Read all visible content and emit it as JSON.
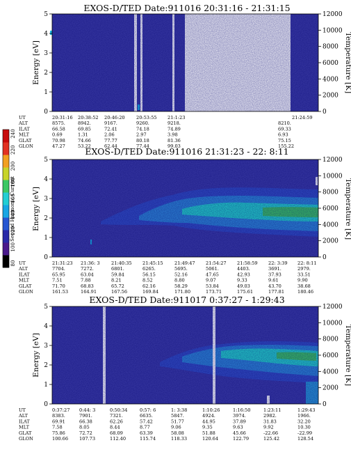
{
  "colors": {
    "background": "#3c3ca6",
    "band_cyan": "#26d6cc",
    "band_green": "#3ec862",
    "band_blue": "#2f88d8",
    "white_gap": "#ffffff"
  },
  "colorbar": {
    "title": "Second Harmonic Current",
    "ticks": [
      "80",
      "100",
      "120",
      "140",
      "160",
      "180",
      "200",
      "220",
      "240"
    ],
    "colors": [
      "#000000",
      "#4a1a8c",
      "#2a2aa8",
      "#2656d2",
      "#18a6e4",
      "#22ced4",
      "#3cc864",
      "#c8d42a",
      "#f2a020",
      "#e23222",
      "#c80c0c"
    ]
  },
  "chart_data": [
    {
      "type": "heatmap",
      "title": "EXOS-D/TED   Date:911016  20:31:16 - 21:31:15",
      "ylabel": "Energy [eV]",
      "y2label": "Temperature [K]",
      "ylim": [
        0,
        5
      ],
      "y_ticks": [
        "0",
        "1",
        "2",
        "3",
        "4",
        "5"
      ],
      "y2lim": [
        0,
        12000
      ],
      "y2_ticks": [
        "0",
        "2000",
        "4000",
        "6000",
        "8000",
        "10000",
        "12000"
      ],
      "orbit_labels": [
        "UT",
        "ALT",
        "ILAT",
        "MLT",
        "GLAT",
        "GLON"
      ],
      "orbit_columns": [
        [
          "20:31:16",
          "8575.",
          "66.58",
          "0.69",
          "70.98",
          "47.27"
        ],
        [
          "20:38:52",
          "8942.",
          "69.85",
          "1.31",
          "74.66",
          "53.22"
        ],
        [
          "20:46:20",
          "9167.",
          "72.41",
          "2.06",
          "77.77",
          "62.44"
        ],
        [
          "20:53:55",
          "9260.",
          "74.18",
          "2.97",
          "80.18",
          "77.44"
        ],
        [
          "21:1:23",
          "9218.",
          "74.89",
          "3.98",
          "81.36",
          "99.03"
        ],
        [
          "",
          "",
          "",
          "",
          "",
          ""
        ],
        [
          "",
          "8210.",
          "69.33",
          "6.93",
          "75.15",
          "155.22"
        ],
        [
          "21:24:59",
          "",
          "",
          "",
          "",
          ""
        ]
      ]
    },
    {
      "type": "heatmap",
      "title": "EXOS-D/TED   Date:911016  21:31:23 - 22: 8:11",
      "ylabel": "Energy [eV]",
      "y2label": "Temperature [K]",
      "ylim": [
        0,
        5
      ],
      "y_ticks": [
        "0",
        "1",
        "2",
        "3",
        "4",
        "5"
      ],
      "y2lim": [
        0,
        12000
      ],
      "y2_ticks": [
        "0",
        "2000",
        "4000",
        "6000",
        "8000",
        "10000",
        "12000"
      ],
      "orbit_labels": [
        "UT",
        "ALT",
        "ILAT",
        "MLT",
        "GLAT",
        "GLON"
      ],
      "orbit_columns": [
        [
          "21:31:23",
          "7704.",
          "65.95",
          "7.51",
          "71.70",
          "161.53"
        ],
        [
          "21:36: 3",
          "7272.",
          "63.04",
          "7.88",
          "68.83",
          "164.91"
        ],
        [
          "21:40:35",
          "6801.",
          "59.84",
          "8.21",
          "65.72",
          "167.56"
        ],
        [
          "21:45:15",
          "6265.",
          "56.15",
          "8.52",
          "62.16",
          "169.84"
        ],
        [
          "21:49:47",
          "5695.",
          "52.16",
          "8.80",
          "58.29",
          "171.80"
        ],
        [
          "21:54:27",
          "5061.",
          "47.65",
          "9.07",
          "53.84",
          "173.71"
        ],
        [
          "21:58:59",
          "4403.",
          "42.93",
          "9.33",
          "49.03",
          "175.61"
        ],
        [
          "22: 3:39",
          "3691.",
          "37.93",
          "9.61",
          "43.70",
          "177.81"
        ],
        [
          "22: 8:11",
          "2979.",
          "33.51",
          "9.90",
          "38.68",
          "180.46"
        ]
      ]
    },
    {
      "type": "heatmap",
      "title": "EXOS-D/TED   Date:911017  0:37:27 - 1:29:43",
      "ylabel": "Energy [eV]",
      "y2label": "Temperature [K]",
      "ylim": [
        0,
        5
      ],
      "y_ticks": [
        "0",
        "1",
        "2",
        "3",
        "4",
        "5"
      ],
      "y2lim": [
        0,
        12000
      ],
      "y2_ticks": [
        "0",
        "2000",
        "4000",
        "6000",
        "8000",
        "10000",
        "12000"
      ],
      "orbit_labels": [
        "UT",
        "ALT",
        "ILAT",
        "MLT",
        "GLAT",
        "GLON"
      ],
      "orbit_columns": [
        [
          "0:37:27",
          "8383.",
          "69.91",
          "7.58",
          "75.86",
          "100.66"
        ],
        [
          "0:44: 3",
          "7901.",
          "66.38",
          "8.05",
          "72.72",
          "107.73"
        ],
        [
          "0:50:34",
          "7321.",
          "62.26",
          "8.44",
          "68.09",
          "112.40"
        ],
        [
          "0:57: 6",
          "6635.",
          "57.42",
          "8.77",
          "63.39",
          "115.74"
        ],
        [
          "1: 3:38",
          "5847.",
          "51.77",
          "9.06",
          "58.08",
          "118.33"
        ],
        [
          "1:10:26",
          "4924.",
          "44.95",
          "9.35",
          "51.88",
          "120.64"
        ],
        [
          "1:16:50",
          "3974.",
          "37.89",
          "9.63",
          "45.66",
          "122.79"
        ],
        [
          "1:23:11",
          "2982.",
          "31.83",
          "9.92",
          "-22.66",
          "125.42"
        ],
        [
          "1:29:43",
          "1966.",
          "32.20",
          "10.30",
          "-22.99",
          "128.54"
        ]
      ]
    }
  ]
}
